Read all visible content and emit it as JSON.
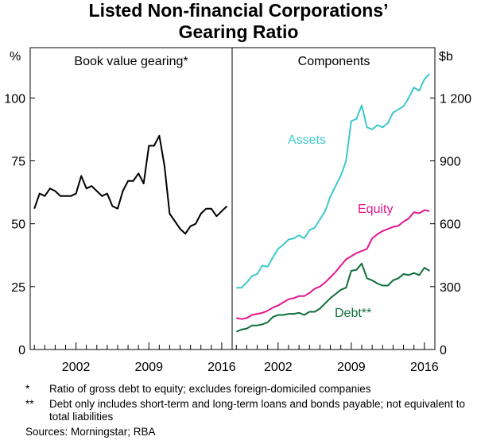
{
  "title_line1": "Listed Non-financial Corporations’",
  "title_line2": "Gearing Ratio",
  "left_unit": "%",
  "right_unit": "$b",
  "notes": [
    {
      "symbol": "*",
      "text": "Ratio of gross debt to equity; excludes foreign-domiciled companies"
    },
    {
      "symbol": "**",
      "text": "Debt only includes short-term and long-term loans and bonds payable; not equivalent to total liabilities"
    }
  ],
  "sources": "Sources:  Morningstar; RBA",
  "chart_data": [
    {
      "type": "line",
      "title": "Book value gearing*",
      "ylabel": "%",
      "ylim": [
        0,
        120
      ],
      "yticks": [
        0,
        25,
        50,
        75,
        100
      ],
      "xlim": [
        1997.6,
        2017.0
      ],
      "xticks": [
        2002,
        2009,
        2016
      ],
      "grid": false,
      "series": [
        {
          "color": "#000000",
          "x": [
            1998.0,
            1998.5,
            1999.0,
            1999.5,
            2000.0,
            2000.5,
            2001.0,
            2001.5,
            2002.0,
            2002.5,
            2003.0,
            2003.5,
            2004.0,
            2004.5,
            2005.0,
            2005.5,
            2006.0,
            2006.5,
            2007.0,
            2007.5,
            2008.0,
            2008.5,
            2009.0,
            2009.5,
            2010.0,
            2010.5,
            2011.0,
            2011.5,
            2012.0,
            2012.5,
            2013.0,
            2013.5,
            2014.0,
            2014.5,
            2015.0,
            2015.5,
            2016.0,
            2016.5
          ],
          "y": [
            56,
            62,
            61,
            64,
            63,
            61,
            61,
            61,
            62,
            69,
            64,
            65,
            63,
            61,
            62,
            57,
            56,
            63,
            67,
            67,
            70,
            66,
            81,
            81,
            85,
            73,
            54,
            51,
            48,
            46,
            49,
            50,
            54,
            56,
            56,
            53,
            55,
            57
          ]
        }
      ]
    },
    {
      "type": "line",
      "title": "Components",
      "ylabel": "$b",
      "ylim": [
        0,
        1440
      ],
      "yticks": [
        0,
        300,
        600,
        900,
        1200
      ],
      "xlim": [
        1997.6,
        2017.0
      ],
      "xticks": [
        2002,
        2009,
        2016
      ],
      "grid": false,
      "series": [
        {
          "name": "Assets",
          "color": "#3cc8cc",
          "x": [
            1998.0,
            1998.5,
            1999.0,
            1999.5,
            2000.0,
            2000.5,
            2001.0,
            2001.5,
            2002.0,
            2002.5,
            2003.0,
            2003.5,
            2004.0,
            2004.5,
            2005.0,
            2005.5,
            2006.0,
            2006.5,
            2007.0,
            2007.5,
            2008.0,
            2008.5,
            2009.0,
            2009.5,
            2010.0,
            2010.5,
            2011.0,
            2011.5,
            2012.0,
            2012.5,
            2013.0,
            2013.5,
            2014.0,
            2014.5,
            2015.0,
            2015.5,
            2016.0,
            2016.5
          ],
          "y": [
            295,
            295,
            320,
            350,
            360,
            400,
            395,
            440,
            480,
            500,
            525,
            530,
            545,
            530,
            570,
            580,
            620,
            660,
            730,
            780,
            830,
            900,
            1090,
            1100,
            1165,
            1060,
            1050,
            1070,
            1060,
            1080,
            1130,
            1145,
            1160,
            1200,
            1250,
            1235,
            1290,
            1315
          ]
        },
        {
          "name": "Equity",
          "color": "#e3158f",
          "x": [
            1998.0,
            1998.5,
            1999.0,
            1999.5,
            2000.0,
            2000.5,
            2001.0,
            2001.5,
            2002.0,
            2002.5,
            2003.0,
            2003.5,
            2004.0,
            2004.5,
            2005.0,
            2005.5,
            2006.0,
            2006.5,
            2007.0,
            2007.5,
            2008.0,
            2008.5,
            2009.0,
            2009.5,
            2010.0,
            2010.5,
            2011.0,
            2011.5,
            2012.0,
            2012.5,
            2013.0,
            2013.5,
            2014.0,
            2014.5,
            2015.0,
            2015.5,
            2016.0,
            2016.5
          ],
          "y": [
            150,
            145,
            150,
            165,
            170,
            175,
            185,
            200,
            210,
            225,
            240,
            245,
            255,
            255,
            270,
            290,
            300,
            320,
            345,
            370,
            400,
            430,
            445,
            460,
            470,
            480,
            530,
            550,
            565,
            575,
            585,
            590,
            610,
            625,
            655,
            650,
            665,
            660
          ]
        },
        {
          "name": "Debt**",
          "color": "#0e6e3a",
          "x": [
            1998.0,
            1998.5,
            1999.0,
            1999.5,
            2000.0,
            2000.5,
            2001.0,
            2001.5,
            2002.0,
            2002.5,
            2003.0,
            2003.5,
            2004.0,
            2004.5,
            2005.0,
            2005.5,
            2006.0,
            2006.5,
            2007.0,
            2007.5,
            2008.0,
            2008.5,
            2009.0,
            2009.5,
            2010.0,
            2010.5,
            2011.0,
            2011.5,
            2012.0,
            2012.5,
            2013.0,
            2013.5,
            2014.0,
            2014.5,
            2015.0,
            2015.5,
            2016.0,
            2016.5
          ],
          "y": [
            85,
            95,
            100,
            115,
            115,
            120,
            130,
            155,
            165,
            165,
            170,
            170,
            175,
            165,
            180,
            180,
            195,
            220,
            245,
            265,
            285,
            295,
            375,
            380,
            410,
            340,
            330,
            315,
            305,
            305,
            330,
            340,
            360,
            355,
            365,
            355,
            390,
            375
          ]
        }
      ]
    }
  ],
  "panel_labels": {
    "left": "Book value gearing*",
    "right": "Components",
    "assets": "Assets",
    "equity": "Equity",
    "debt": "Debt**"
  }
}
